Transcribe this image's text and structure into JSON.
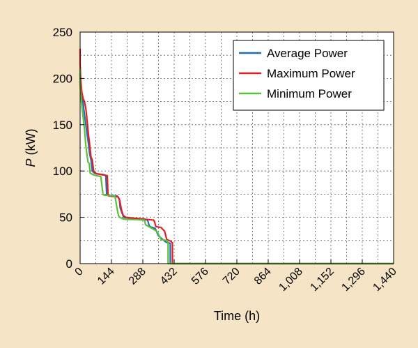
{
  "chart_data": {
    "type": "line",
    "title": "",
    "xlabel": "Time (h)",
    "ylabel_var": "P",
    "ylabel_unit": " (kW)",
    "xlim": [
      0,
      1440
    ],
    "ylim": [
      0,
      250
    ],
    "xticks": [
      0,
      144,
      288,
      432,
      576,
      720,
      864,
      1008,
      1152,
      1296,
      1440
    ],
    "xtick_labels": [
      "0",
      "144",
      "288",
      "432",
      "576",
      "720",
      "864",
      "1,008",
      "1,152",
      "1,296",
      "1,440"
    ],
    "yticks": [
      0,
      50,
      100,
      150,
      200,
      250
    ],
    "ytick_labels": [
      "0",
      "50",
      "100",
      "150",
      "200",
      "250"
    ],
    "x_gridlines": [
      72,
      144,
      216,
      288,
      360,
      432,
      504,
      576,
      648,
      720,
      792,
      864,
      936,
      1008,
      1080,
      1152,
      1224,
      1296,
      1368
    ],
    "y_gridlines": [
      25,
      50,
      75,
      100,
      125,
      150,
      175,
      200,
      225
    ],
    "grid": true,
    "legend_position": "top-right",
    "series": [
      {
        "name": "Average Power",
        "color": "#1f6fb5",
        "x": [
          0,
          0,
          3,
          10,
          18,
          26,
          32,
          38,
          44,
          50,
          56,
          64,
          78,
          110,
          118,
          122,
          126,
          170,
          180,
          184,
          200,
          310,
          316,
          320,
          345,
          360,
          380,
          390,
          396,
          414,
          414,
          1440
        ],
        "y": [
          205,
          200,
          188,
          180,
          165,
          150,
          140,
          130,
          118,
          112,
          100,
          98,
          97,
          96,
          95,
          75,
          74,
          73,
          70,
          60,
          50,
          47,
          42,
          40,
          38,
          30,
          26,
          24,
          23,
          22,
          0,
          0
        ]
      },
      {
        "name": "Maximum Power",
        "color": "#e31e24",
        "x": [
          0,
          0,
          3,
          8,
          14,
          20,
          26,
          32,
          38,
          44,
          50,
          56,
          62,
          68,
          75,
          100,
          125,
          128,
          132,
          175,
          182,
          190,
          198,
          210,
          338,
          342,
          348,
          372,
          388,
          398,
          408,
          418,
          424,
          424,
          1440
        ],
        "y": [
          232,
          215,
          198,
          185,
          178,
          175,
          168,
          155,
          140,
          128,
          115,
          112,
          100,
          98,
          97,
          96,
          95,
          74,
          73,
          72,
          68,
          58,
          52,
          50,
          47,
          45,
          40,
          39,
          35,
          26,
          25,
          24,
          22,
          0,
          0
        ]
      },
      {
        "name": "Minimum Power",
        "color": "#5cbf3a",
        "x": [
          0,
          0,
          2,
          8,
          14,
          20,
          26,
          30,
          36,
          42,
          46,
          52,
          60,
          75,
          95,
          105,
          110,
          160,
          168,
          176,
          182,
          200,
          296,
          300,
          330,
          352,
          364,
          372,
          400,
          404,
          404,
          1440
        ],
        "y": [
          210,
          195,
          185,
          170,
          158,
          145,
          128,
          120,
          110,
          108,
          98,
          97,
          96,
          95,
          94,
          75,
          74,
          73,
          62,
          52,
          50,
          48,
          47,
          42,
          38,
          35,
          30,
          26,
          25,
          23,
          0,
          0
        ]
      }
    ]
  }
}
